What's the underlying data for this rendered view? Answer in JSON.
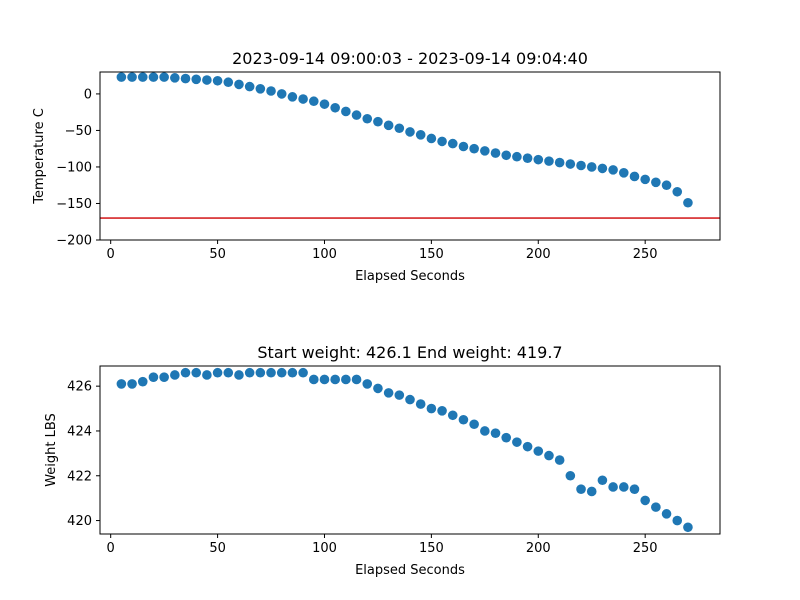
{
  "chart_data": [
    {
      "type": "scatter",
      "title": "2023-09-14 09:00:03 - 2023-09-14 09:04:40",
      "xlabel": "Elapsed Seconds",
      "ylabel": "Temperature C",
      "xlim": [
        -5,
        285
      ],
      "ylim": [
        -200,
        30
      ],
      "xticks": [
        0,
        50,
        100,
        150,
        200,
        250
      ],
      "yticks": [
        -200,
        -150,
        -100,
        -50,
        0
      ],
      "ytick_labels": [
        "−200",
        "−150",
        "−100",
        "−50",
        "0"
      ],
      "marker_color": "#1f77b4",
      "hline": {
        "y": -170,
        "color": "#d62728"
      },
      "x": [
        5,
        10,
        15,
        20,
        25,
        30,
        35,
        40,
        45,
        50,
        55,
        60,
        65,
        70,
        75,
        80,
        85,
        90,
        95,
        100,
        105,
        110,
        115,
        120,
        125,
        130,
        135,
        140,
        145,
        150,
        155,
        160,
        165,
        170,
        175,
        180,
        185,
        190,
        195,
        200,
        205,
        210,
        215,
        220,
        225,
        230,
        235,
        240,
        245,
        250,
        255,
        260,
        265,
        270
      ],
      "y": [
        23,
        23,
        23,
        23,
        23,
        22,
        21,
        20,
        19,
        18,
        16,
        13,
        10,
        7,
        4,
        0,
        -4,
        -7,
        -10,
        -14,
        -19,
        -24,
        -29,
        -34,
        -38,
        -43,
        -47,
        -52,
        -56,
        -61,
        -65,
        -68,
        -72,
        -75,
        -78,
        -81,
        -84,
        -86,
        -88,
        -90,
        -92,
        -94,
        -96,
        -98,
        -100,
        -102,
        -104,
        -108,
        -113,
        -117,
        -121,
        -125,
        -134,
        -149
      ]
    },
    {
      "type": "scatter",
      "title": "Start weight: 426.1 End weight: 419.7",
      "xlabel": "Elapsed Seconds",
      "ylabel": "Weight LBS",
      "xlim": [
        -5,
        285
      ],
      "ylim": [
        419.4,
        426.9
      ],
      "xticks": [
        0,
        50,
        100,
        150,
        200,
        250
      ],
      "yticks": [
        420,
        422,
        424,
        426
      ],
      "ytick_labels": [
        "420",
        "422",
        "424",
        "426"
      ],
      "marker_color": "#1f77b4",
      "x": [
        5,
        10,
        15,
        20,
        25,
        30,
        35,
        40,
        45,
        50,
        55,
        60,
        65,
        70,
        75,
        80,
        85,
        90,
        95,
        100,
        105,
        110,
        115,
        120,
        125,
        130,
        135,
        140,
        145,
        150,
        155,
        160,
        165,
        170,
        175,
        180,
        185,
        190,
        195,
        200,
        205,
        210,
        215,
        220,
        225,
        230,
        235,
        240,
        245,
        250,
        255,
        260,
        265,
        270
      ],
      "y": [
        426.1,
        426.1,
        426.2,
        426.4,
        426.4,
        426.5,
        426.6,
        426.6,
        426.5,
        426.6,
        426.6,
        426.5,
        426.6,
        426.6,
        426.6,
        426.6,
        426.6,
        426.6,
        426.3,
        426.3,
        426.3,
        426.3,
        426.3,
        426.1,
        425.9,
        425.7,
        425.6,
        425.4,
        425.2,
        425.0,
        424.9,
        424.7,
        424.5,
        424.3,
        424.0,
        423.9,
        423.7,
        423.5,
        423.3,
        423.1,
        422.9,
        422.7,
        422.0,
        421.4,
        421.3,
        421.8,
        421.5,
        421.5,
        421.4,
        420.9,
        420.6,
        420.3,
        420.0,
        419.7
      ]
    }
  ]
}
